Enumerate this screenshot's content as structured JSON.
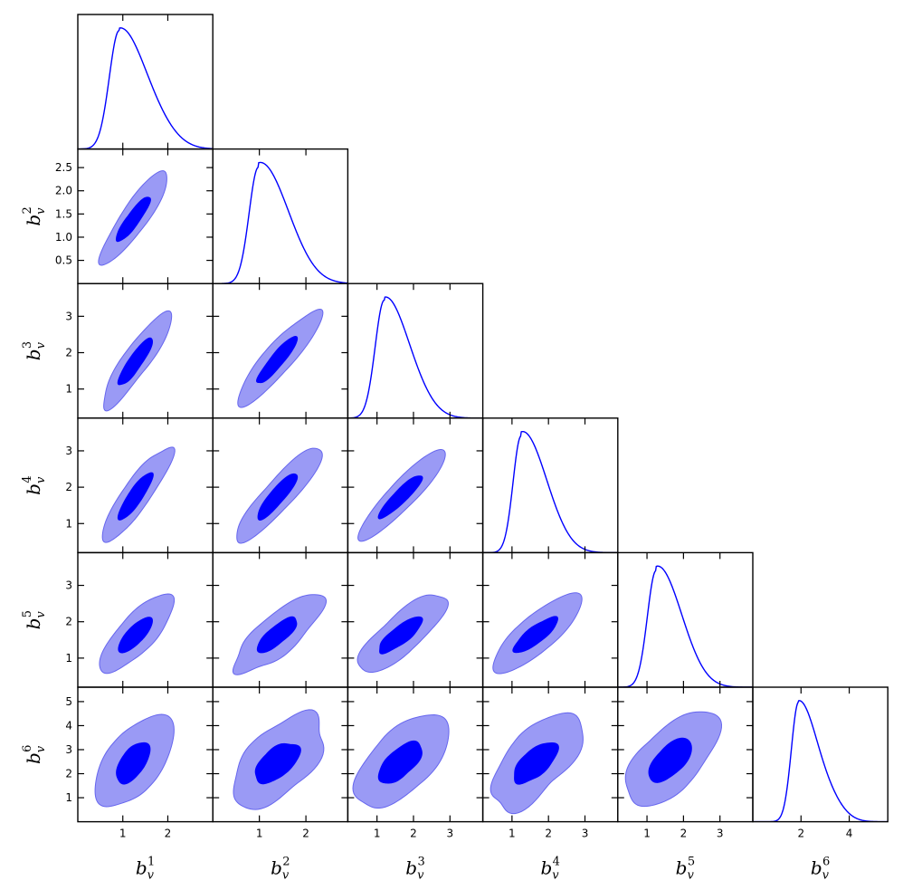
{
  "chart_data": {
    "type": "corner-plot",
    "description_kind": "triangle plot of 1D marginals and 2D joint contours",
    "colors": {
      "inner_contour": "#0000ff",
      "outer_contour": "#9a9af5",
      "outer_edge": "#6666ee",
      "line": "#0000ff",
      "frame": "#000000"
    },
    "parameters": [
      {
        "id": "b1",
        "label_base": "b",
        "label_sup": "1",
        "label_sub": "v",
        "range": [
          0.0,
          3.0
        ],
        "ticks": [
          1,
          2
        ],
        "tick_labels": [
          "1",
          "2"
        ],
        "marginal": {
          "peak": 0.92,
          "sigma_left": 0.22,
          "sigma_right": 0.55,
          "shoulder": 1.75
        }
      },
      {
        "id": "b2",
        "label_base": "b",
        "label_sup": "2",
        "label_sub": "v",
        "range": [
          0.0,
          2.9
        ],
        "ticks": [
          0.5,
          1.0,
          1.5,
          2.0,
          2.5
        ],
        "tick_labels": [
          "0.5",
          "1.0",
          "1.5",
          "2.0",
          "2.5"
        ],
        "x_ticks": [
          1,
          2
        ],
        "x_tick_labels": [
          "1",
          "2"
        ],
        "marginal": {
          "peak": 0.98,
          "sigma_left": 0.2,
          "sigma_right": 0.55,
          "shoulder": 1.65
        }
      },
      {
        "id": "b3",
        "label_base": "b",
        "label_sup": "3",
        "label_sub": "v",
        "range": [
          0.2,
          3.9
        ],
        "ticks": [
          1,
          2,
          3
        ],
        "tick_labels": [
          "1",
          "2",
          "3"
        ],
        "marginal": {
          "peak": 1.2,
          "sigma_left": 0.25,
          "sigma_right": 0.6,
          "shoulder": 2.05
        }
      },
      {
        "id": "b4",
        "label_base": "b",
        "label_sup": "4",
        "label_sub": "v",
        "range": [
          0.2,
          3.9
        ],
        "ticks": [
          1,
          2,
          3
        ],
        "tick_labels": [
          "1",
          "2",
          "3"
        ],
        "marginal": {
          "peak": 1.25,
          "sigma_left": 0.22,
          "sigma_right": 0.6,
          "shoulder": 2.0
        }
      },
      {
        "id": "b5",
        "label_base": "b",
        "label_sup": "5",
        "label_sub": "v",
        "range": [
          0.2,
          3.9
        ],
        "ticks": [
          1,
          2,
          3
        ],
        "tick_labels": [
          "1",
          "2",
          "3"
        ],
        "marginal": {
          "peak": 1.25,
          "sigma_left": 0.24,
          "sigma_right": 0.6,
          "shoulder": 2.0
        }
      },
      {
        "id": "b6",
        "label_base": "b",
        "label_sup": "6",
        "label_sub": "v",
        "range": [
          0.0,
          5.6
        ],
        "ticks": [
          1,
          2,
          3,
          4,
          5
        ],
        "tick_labels": [
          "1",
          "2",
          "3",
          "4",
          "5"
        ],
        "x_ticks": [
          2,
          4
        ],
        "x_tick_labels": [
          "2",
          "4"
        ],
        "marginal": {
          "peak": 1.9,
          "sigma_left": 0.3,
          "sigma_right": 0.75,
          "shoulder": 3.2
        }
      }
    ],
    "contours": [
      {
        "x": "b1",
        "y": "b2",
        "center": [
          1.2,
          1.35
        ],
        "inner_half_width": [
          0.35,
          0.45
        ],
        "outer_half_width": [
          0.7,
          0.95
        ],
        "correlation": 0.88
      },
      {
        "x": "b1",
        "y": "b3",
        "center": [
          1.25,
          1.7
        ],
        "inner_half_width": [
          0.35,
          0.6
        ],
        "outer_half_width": [
          0.7,
          1.2
        ],
        "correlation": 0.87
      },
      {
        "x": "b2",
        "y": "b3",
        "center": [
          1.35,
          1.75
        ],
        "inner_half_width": [
          0.4,
          0.6
        ],
        "outer_half_width": [
          0.85,
          1.25
        ],
        "correlation": 0.9
      },
      {
        "x": "b1",
        "y": "b4",
        "center": [
          1.25,
          1.7
        ],
        "inner_half_width": [
          0.35,
          0.6
        ],
        "outer_half_width": [
          0.7,
          1.2
        ],
        "correlation": 0.86
      },
      {
        "x": "b2",
        "y": "b4",
        "center": [
          1.35,
          1.7
        ],
        "inner_half_width": [
          0.4,
          0.6
        ],
        "outer_half_width": [
          0.85,
          1.2
        ],
        "correlation": 0.88
      },
      {
        "x": "b3",
        "y": "b4",
        "center": [
          1.6,
          1.7
        ],
        "inner_half_width": [
          0.55,
          0.55
        ],
        "outer_half_width": [
          1.1,
          1.15
        ],
        "correlation": 0.9
      },
      {
        "x": "b1",
        "y": "b5",
        "center": [
          1.25,
          1.6
        ],
        "inner_half_width": [
          0.35,
          0.45
        ],
        "outer_half_width": [
          0.75,
          1.0
        ],
        "correlation": 0.75
      },
      {
        "x": "b2",
        "y": "b5",
        "center": [
          1.35,
          1.6
        ],
        "inner_half_width": [
          0.4,
          0.45
        ],
        "outer_half_width": [
          0.9,
          1.0
        ],
        "correlation": 0.77
      },
      {
        "x": "b3",
        "y": "b5",
        "center": [
          1.6,
          1.6
        ],
        "inner_half_width": [
          0.55,
          0.45
        ],
        "outer_half_width": [
          1.15,
          1.0
        ],
        "correlation": 0.78
      },
      {
        "x": "b4",
        "y": "b5",
        "center": [
          1.6,
          1.6
        ],
        "inner_half_width": [
          0.55,
          0.45
        ],
        "outer_half_width": [
          1.15,
          1.0
        ],
        "correlation": 0.8
      },
      {
        "x": "b1",
        "y": "b6",
        "center": [
          1.2,
          2.4
        ],
        "inner_half_width": [
          0.35,
          0.8
        ],
        "outer_half_width": [
          0.8,
          1.85
        ],
        "correlation": 0.55
      },
      {
        "x": "b2",
        "y": "b6",
        "center": [
          1.35,
          2.4
        ],
        "inner_half_width": [
          0.45,
          0.8
        ],
        "outer_half_width": [
          0.95,
          1.85
        ],
        "correlation": 0.57
      },
      {
        "x": "b3",
        "y": "b6",
        "center": [
          1.6,
          2.4
        ],
        "inner_half_width": [
          0.55,
          0.8
        ],
        "outer_half_width": [
          1.2,
          1.85
        ],
        "correlation": 0.58
      },
      {
        "x": "b4",
        "y": "b6",
        "center": [
          1.6,
          2.4
        ],
        "inner_half_width": [
          0.55,
          0.8
        ],
        "outer_half_width": [
          1.2,
          1.85
        ],
        "correlation": 0.6
      },
      {
        "x": "b5",
        "y": "b6",
        "center": [
          1.6,
          2.5
        ],
        "inner_half_width": [
          0.55,
          0.85
        ],
        "outer_half_width": [
          1.2,
          1.85
        ],
        "correlation": 0.58
      }
    ],
    "grid": false,
    "legend": "none"
  }
}
